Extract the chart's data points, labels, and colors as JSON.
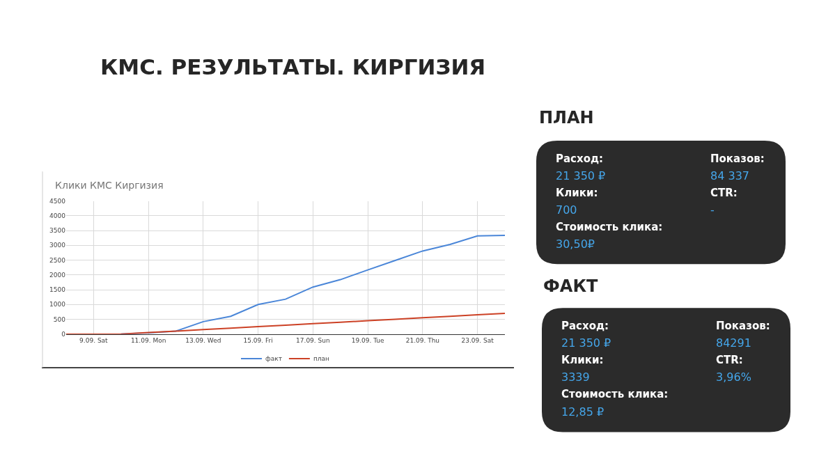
{
  "chart_data": [
    {
      "type": "other",
      "title": "КМС. РЕЗУЛЬТАТЫ. КИРГИЗИЯ"
    },
    {
      "type": "line",
      "title": "Клики КМС Киргизия",
      "categories": [
        null,
        "9.09. Sat",
        null,
        "11.09. Mon",
        null,
        "13.09. Wed",
        null,
        "15.09. Fri",
        null,
        "17.09. Sun",
        null,
        "19.09. Tue",
        null,
        "21.09. Thu",
        null,
        "23.09. Sat",
        null
      ],
      "series": [
        {
          "name": "факт",
          "color": "#4a86d8",
          "values": [
            null,
            null,
            0,
            40,
            100,
            420,
            600,
            1000,
            1180,
            1590,
            1840,
            2170,
            2490,
            2810,
            3030,
            3320,
            3340
          ]
        },
        {
          "name": "план",
          "color": "#cc4125",
          "values": [
            0,
            0,
            0,
            50,
            100,
            150,
            200,
            250,
            300,
            350,
            400,
            450,
            500,
            550,
            600,
            650,
            700
          ]
        }
      ],
      "ylim": [
        0,
        4500
      ],
      "yticks": [
        0,
        500,
        1000,
        1500,
        2000,
        2500,
        3000,
        3500,
        4000,
        4500
      ],
      "grid": true,
      "legend": "bottom",
      "marker": "none",
      "line_style": "solid"
    },
    {
      "type": "other",
      "title": "ПЛАН",
      "annotations": [
        "Расход:",
        "21 350 ₽",
        "Клики:",
        "700",
        "Стоимость клика:",
        "30,50₽",
        "Показов:",
        "84 337",
        "CTR:",
        "-"
      ]
    },
    {
      "type": "other",
      "title": "ФАКТ",
      "annotations": [
        "Расход:",
        "21 350 ₽",
        "Клики:",
        "3339",
        "Стоимость клика:",
        "12,85 ₽",
        "Показов:",
        "84291",
        "CTR:",
        "3,96%"
      ]
    }
  ]
}
